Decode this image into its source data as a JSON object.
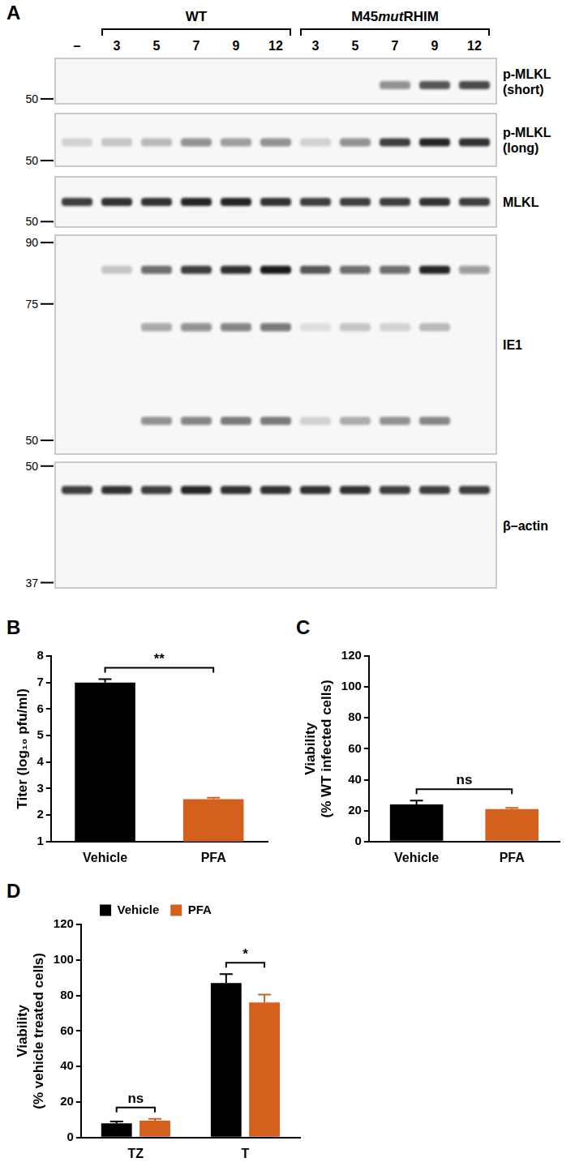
{
  "blot": {
    "panel_label": "A",
    "lead_lanes": [
      "–"
    ],
    "groups": [
      {
        "label_parts": [
          {
            "text": "WT"
          }
        ],
        "lanes": [
          "3",
          "5",
          "7",
          "9",
          "12"
        ]
      },
      {
        "label_parts": [
          {
            "text": "M45"
          },
          {
            "text": "mut",
            "italic": true
          },
          {
            "text": "RHIM"
          }
        ],
        "lanes": [
          "3",
          "5",
          "7",
          "9",
          "12"
        ]
      }
    ],
    "strips": [
      {
        "label": [
          "p-MLKL",
          "(short)"
        ],
        "ylim": [
          70,
          48
        ],
        "markers": [
          50
        ],
        "bands": [
          {
            "kda": 56,
            "intensity": [
              0,
              0,
              0,
              0,
              0,
              0,
              0,
              0,
              0.45,
              0.7,
              0.75
            ]
          }
        ]
      },
      {
        "label": [
          "p-MLKL",
          "(long)"
        ],
        "ylim": [
          70,
          48
        ],
        "markers": [
          50
        ],
        "bands": [
          {
            "kda": 57,
            "intensity": [
              0.15,
              0.2,
              0.25,
              0.45,
              0.4,
              0.45,
              0.15,
              0.45,
              0.8,
              0.9,
              0.85
            ]
          }
        ]
      },
      {
        "label": [
          "MLKL"
        ],
        "ylim": [
          70,
          48
        ],
        "markers": [
          50
        ],
        "bands": [
          {
            "kda": 58,
            "intensity": [
              0.8,
              0.85,
              0.85,
              0.9,
              0.9,
              0.85,
              0.8,
              0.8,
              0.8,
              0.85,
              0.8
            ]
          }
        ]
      },
      {
        "label": [
          "IE1"
        ],
        "ylim": [
          92,
          48
        ],
        "markers": [
          90,
          75,
          50
        ],
        "bands": [
          {
            "kda": 83,
            "intensity": [
              0,
              0.2,
              0.6,
              0.8,
              0.85,
              0.95,
              0.7,
              0.6,
              0.6,
              0.9,
              0.4
            ]
          },
          {
            "kda": 70,
            "intensity": [
              0,
              0,
              0.35,
              0.45,
              0.5,
              0.55,
              0.1,
              0.2,
              0.15,
              0.25,
              0
            ]
          },
          {
            "kda": 53,
            "intensity": [
              0,
              0,
              0.45,
              0.5,
              0.55,
              0.55,
              0.15,
              0.3,
              0.45,
              0.5,
              0
            ]
          }
        ]
      },
      {
        "label": [
          "β–actin"
        ],
        "ylim": [
          50.5,
          36.5
        ],
        "markers": [
          50,
          37
        ],
        "bands": [
          {
            "kda": 47,
            "intensity": [
              0.8,
              0.85,
              0.8,
              0.9,
              0.85,
              0.85,
              0.85,
              0.85,
              0.8,
              0.8,
              0.8
            ]
          }
        ]
      }
    ]
  },
  "chart_data": [
    {
      "panel_label": "B",
      "type": "bar",
      "categories": [
        "Vehicle",
        "PFA"
      ],
      "values": [
        7.0,
        2.6
      ],
      "errors": [
        0.13,
        0.05
      ],
      "colors": [
        "#000000",
        "#d4601e"
      ],
      "y_label": "Titer (log₁₀ pfu/ml)",
      "ylim": [
        1,
        8
      ],
      "yticks": [
        1,
        2,
        3,
        4,
        5,
        6,
        7,
        8
      ],
      "grid": false,
      "annotations": [
        {
          "text": "**",
          "between": [
            "Vehicle",
            "PFA"
          ]
        }
      ]
    },
    {
      "panel_label": "C",
      "type": "bar",
      "categories": [
        "Vehicle",
        "PFA"
      ],
      "values": [
        24,
        21
      ],
      "errors": [
        2.5,
        0.8
      ],
      "colors": [
        "#000000",
        "#d4601e"
      ],
      "y_label": [
        "Viability",
        "(% WT infected cells)"
      ],
      "ylim": [
        0,
        120
      ],
      "yticks": [
        0,
        20,
        40,
        60,
        80,
        100,
        120
      ],
      "grid": false,
      "annotations": [
        {
          "text": "ns",
          "between": [
            "Vehicle",
            "PFA"
          ]
        }
      ]
    },
    {
      "panel_label": "D",
      "type": "bar",
      "categories": [
        "TZ",
        "T"
      ],
      "series": [
        {
          "name": "Vehicle",
          "color": "#000000",
          "values": [
            8,
            87
          ],
          "errors": [
            1,
            5
          ]
        },
        {
          "name": "PFA",
          "color": "#d4601e",
          "values": [
            9.5,
            76
          ],
          "errors": [
            1,
            4.5
          ]
        }
      ],
      "y_label": [
        "Viability",
        "(% vehicle treated cells)"
      ],
      "ylim": [
        0,
        120
      ],
      "yticks": [
        0,
        20,
        40,
        60,
        80,
        100,
        120
      ],
      "grid": false,
      "legend": "top",
      "annotations": [
        {
          "text": "ns",
          "category": "TZ"
        },
        {
          "text": "*",
          "category": "T"
        }
      ]
    }
  ]
}
